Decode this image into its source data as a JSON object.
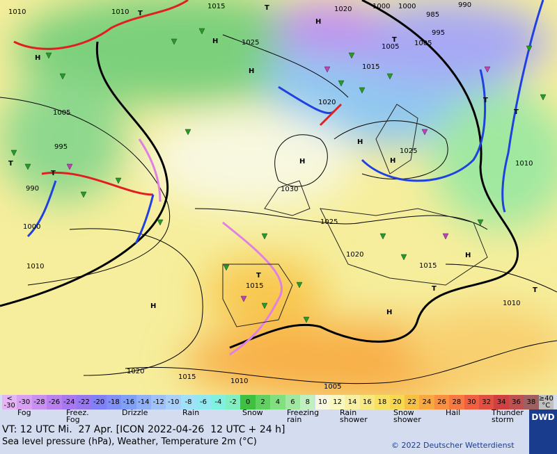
{
  "map": {
    "labels": [
      "1010",
      "1010",
      "T",
      "1015",
      "1020",
      "1000",
      "1000",
      "985",
      "990",
      "H",
      "H",
      "1025",
      "H",
      "H",
      "1005",
      "1005",
      "995",
      "1015",
      "1020",
      "1005",
      "995",
      "T",
      "T",
      "990",
      "1000",
      "1010",
      "H",
      "1025",
      "H",
      "H",
      "1030",
      "1025",
      "1020",
      "1015",
      "T",
      "1015",
      "H",
      "H",
      "H",
      "T",
      "T",
      "1010",
      "1020",
      "1015",
      "1010",
      "1005",
      "1010",
      "T",
      "T",
      "T",
      "T"
    ]
  },
  "colorbar": {
    "labels": [
      "< -30",
      "-30",
      "-28",
      "-26",
      "-24",
      "-22",
      "-20",
      "-18",
      "-16",
      "-14",
      "-12",
      "-10",
      "-8",
      "-6",
      "-4",
      "-2",
      "0",
      "2",
      "4",
      "6",
      "8",
      "10",
      "12",
      "14",
      "16",
      "18",
      "20",
      "22",
      "24",
      "26",
      "28",
      "30",
      "32",
      "34",
      "36",
      "38",
      "≥40 °C"
    ],
    "colors": [
      "#e4b4f4",
      "#d8a0f0",
      "#c890f0",
      "#b880f0",
      "#a878f0",
      "#9878f0",
      "#8080f8",
      "#8090f8",
      "#80a0f8",
      "#90b0f8",
      "#a0c0f8",
      "#a8d0f8",
      "#a0e0f8",
      "#90e8f0",
      "#80f0e0",
      "#80f0c0",
      "#40c040",
      "#60d060",
      "#80e080",
      "#a0e8a0",
      "#c0f0c0",
      "#f8f8e0",
      "#f8f8c0",
      "#f8f0a0",
      "#f8e880",
      "#f8e060",
      "#f8d850",
      "#f8c040",
      "#f8a840",
      "#f89040",
      "#f87840",
      "#f06040",
      "#e05040",
      "#d04040",
      "#c05050",
      "#a06060",
      "#c0c0c0"
    ]
  },
  "legend": {
    "items": [
      "Fog",
      "Freez. Fog",
      "Drizzle",
      "Rain",
      "Snow",
      "Freezing rain",
      "Rain shower",
      "Snow shower",
      "Hail",
      "Thunder storm"
    ]
  },
  "footer": {
    "valid_time": "VT: 12 UTC Mi.  27 Apr. [ICON 2022-04-26  12 UTC + 24 h]",
    "subtitle": "Sea level pressure (hPa), Weather, Temperature 2m (°C)",
    "copyright": "© 2022 Deutscher Wetterdienst",
    "logo": "DWD"
  }
}
